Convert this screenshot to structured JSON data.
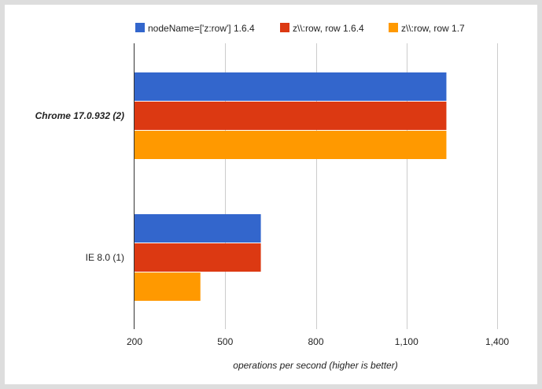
{
  "chart_data": {
    "type": "bar",
    "orientation": "horizontal",
    "categories": [
      "Chrome 17.0.932 (2)",
      "IE 8.0 (1)"
    ],
    "series": [
      {
        "name": "nodeName=['z:row'] 1.6.4",
        "values": [
          1232,
          618
        ]
      },
      {
        "name": "z\\\\:row, row 1.6.4",
        "values": [
          1232,
          618
        ]
      },
      {
        "name": "z\\\\:row, row 1.7",
        "values": [
          1232,
          418
        ]
      }
    ],
    "xlabel": "operations per second (higher is better)",
    "ylabel": "",
    "xlim": [
      200,
      1400
    ],
    "xticks": [
      200,
      500,
      800,
      1100,
      1400
    ],
    "xtick_labels": [
      "200",
      "500",
      "800",
      "1,100",
      "1,400"
    ],
    "grid": true,
    "legend_position": "top",
    "colors": [
      "#3366cc",
      "#dc3912",
      "#ff9900"
    ],
    "bold_category": "Chrome 17.0.932 (2)"
  }
}
